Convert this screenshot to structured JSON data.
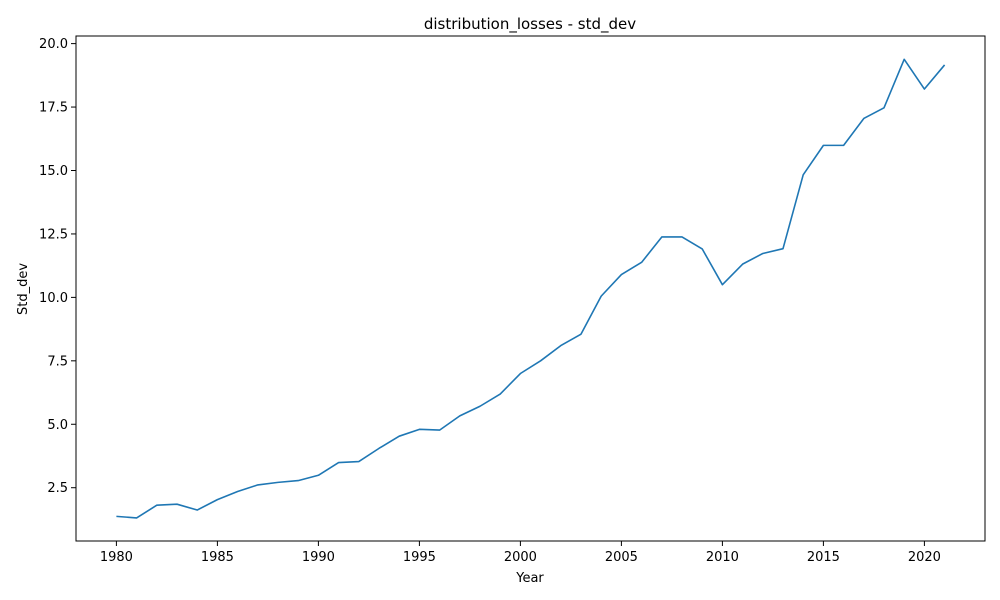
{
  "chart_data": {
    "type": "line",
    "title": "distribution_losses - std_dev",
    "xlabel": "Year",
    "ylabel": "Std_dev",
    "xlim": [
      1978,
      2023
    ],
    "ylim": [
      0.4,
      20.3
    ],
    "xticks": [
      1980,
      1985,
      1990,
      1995,
      2000,
      2005,
      2010,
      2015,
      2020
    ],
    "yticks": [
      2.5,
      5.0,
      7.5,
      10.0,
      12.5,
      15.0,
      17.5,
      20.0
    ],
    "ytick_labels": [
      "2.5",
      "5.0",
      "7.5",
      "10.0",
      "12.5",
      "15.0",
      "17.5",
      "20.0"
    ],
    "grid": false,
    "color": "#1f77b4",
    "series": [
      {
        "x": [
          1980,
          1981,
          1982,
          1983,
          1984,
          1985,
          1986,
          1987,
          1988,
          1989,
          1990,
          1991,
          1992,
          1993,
          1994,
          1995,
          1996,
          1997,
          1998,
          1999,
          2000,
          2001,
          2002,
          2003,
          2004,
          2005,
          2006,
          2007,
          2008,
          2009,
          2010,
          2011,
          2012,
          2013,
          2014,
          2015,
          2016,
          2017,
          2018,
          2019,
          2020,
          2021
        ],
        "values": [
          1.37,
          1.31,
          1.81,
          1.85,
          1.62,
          2.03,
          2.35,
          2.61,
          2.71,
          2.78,
          2.99,
          3.49,
          3.53,
          4.05,
          4.53,
          4.8,
          4.77,
          5.33,
          5.71,
          6.19,
          7.0,
          7.5,
          8.1,
          8.55,
          10.05,
          10.9,
          11.38,
          12.38,
          12.38,
          11.91,
          10.5,
          11.31,
          11.73,
          11.92,
          14.83,
          15.99,
          15.99,
          17.05,
          17.47,
          19.38,
          18.21,
          19.16
        ]
      }
    ]
  }
}
